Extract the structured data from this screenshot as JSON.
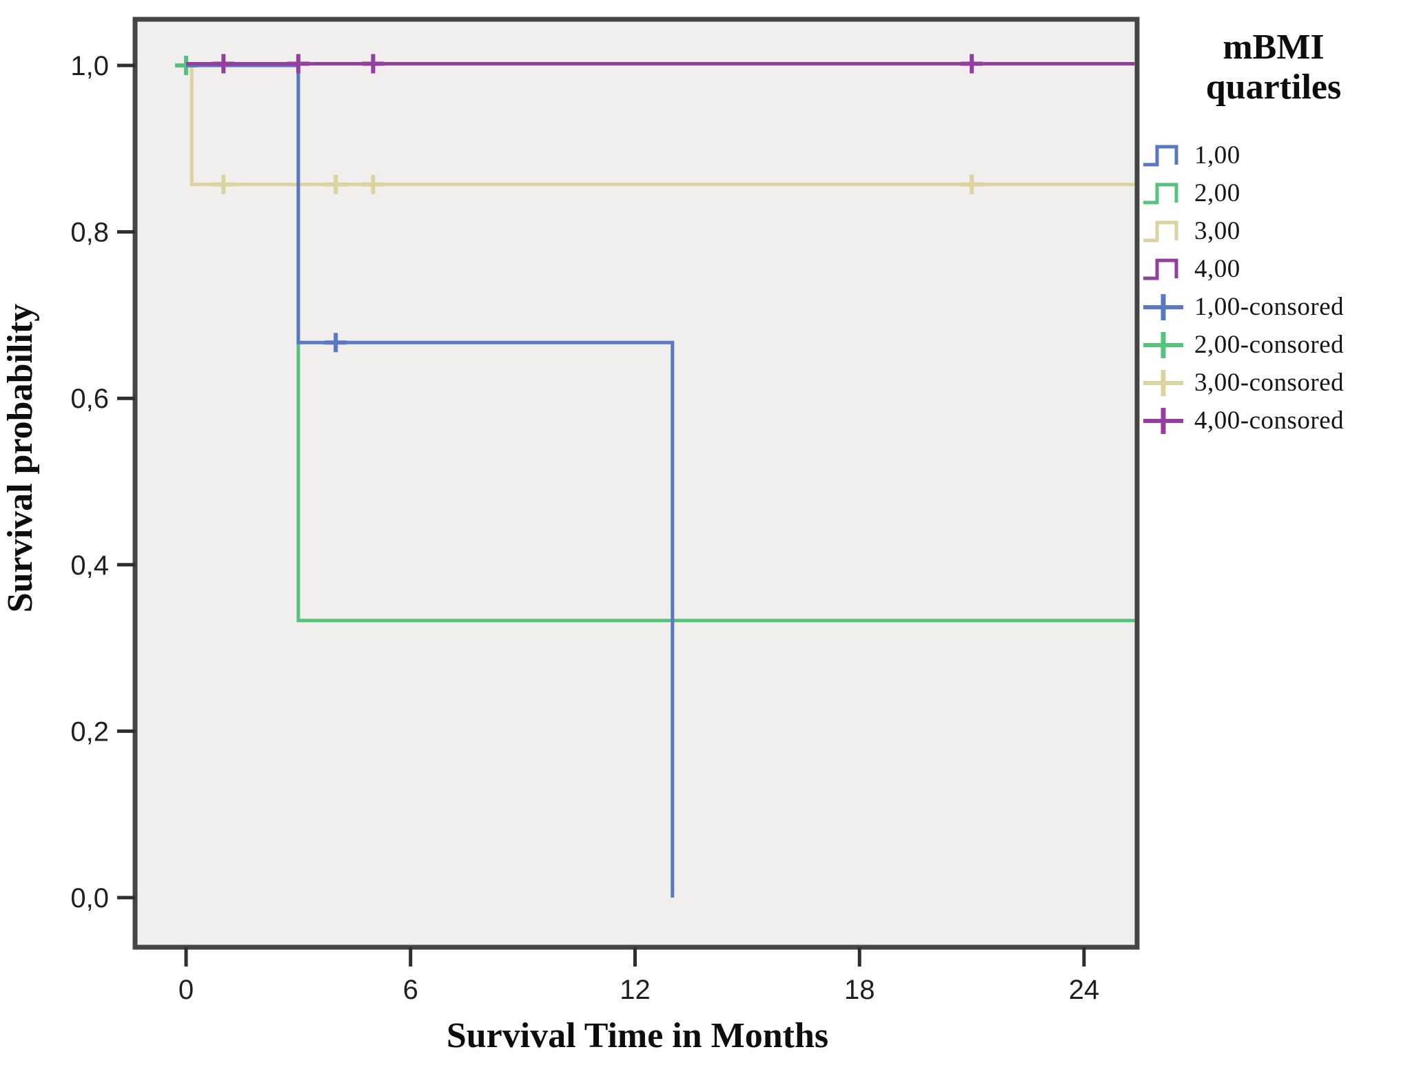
{
  "axes": {
    "x_title": "Survival Time in Months",
    "y_title": "Survival probability",
    "x_tick_labels": [
      "0",
      "6",
      "12",
      "18",
      "24"
    ],
    "y_tick_labels": [
      "0,0",
      "0,2",
      "0,4",
      "0,6",
      "0,8",
      "1,0"
    ]
  },
  "legend": {
    "title": "mBMI quartiles",
    "items": [
      {
        "label": "1,00",
        "glyph": "step",
        "color": "#5a78c2"
      },
      {
        "label": "2,00",
        "glyph": "step",
        "color": "#55c37d"
      },
      {
        "label": "3,00",
        "glyph": "step",
        "color": "#dbd3a0"
      },
      {
        "label": "4,00",
        "glyph": "step",
        "color": "#943f9f"
      },
      {
        "label": "1,00-consored",
        "glyph": "plus",
        "color": "#5a78c2"
      },
      {
        "label": "2,00-consored",
        "glyph": "plus",
        "color": "#55c37d"
      },
      {
        "label": "3,00-consored",
        "glyph": "plus",
        "color": "#dbd3a0"
      },
      {
        "label": "4,00-consored",
        "glyph": "plus",
        "color": "#943f9f"
      }
    ]
  },
  "chart_data": {
    "type": "line",
    "subtype": "kaplan_meier_step",
    "title": "",
    "xlabel": "Survival Time in Months",
    "ylabel": "Survival probability",
    "xlim": [
      -1.4,
      25.4
    ],
    "ylim": [
      -0.06,
      1.06
    ],
    "x_tick_values": [
      0,
      6,
      12,
      18,
      24
    ],
    "y_tick_values": [
      0.0,
      0.2,
      0.4,
      0.6,
      0.8,
      1.0
    ],
    "y_tick_labels": [
      "0,0",
      "0,2",
      "0,4",
      "0,6",
      "0,8",
      "1,0"
    ],
    "grid": false,
    "plot_bg": "#f0efee",
    "frame_color": "#454545",
    "legend_position": "right",
    "legend_title": "mBMI quartiles",
    "series": [
      {
        "name": "3,00",
        "color": "#dbd3a0",
        "steps": [
          [
            0,
            1.0
          ],
          [
            0.15,
            1.0
          ],
          [
            0.15,
            0.857
          ],
          [
            25.35,
            0.857
          ]
        ],
        "censored": [
          [
            1,
            0.857
          ],
          [
            4,
            0.857
          ],
          [
            5,
            0.857
          ],
          [
            21,
            0.857
          ]
        ]
      },
      {
        "name": "2,00",
        "color": "#55c37d",
        "steps": [
          [
            0,
            1.0
          ],
          [
            3,
            1.0
          ],
          [
            3,
            0.333
          ],
          [
            25.35,
            0.333
          ]
        ],
        "censored": [
          [
            0,
            1.0
          ]
        ]
      },
      {
        "name": "1,00",
        "color": "#5a78c2",
        "steps": [
          [
            0,
            1.0
          ],
          [
            3,
            1.0
          ],
          [
            3,
            0.667
          ],
          [
            13,
            0.667
          ],
          [
            13,
            0.0
          ]
        ],
        "censored": [
          [
            4,
            0.667
          ]
        ]
      },
      {
        "name": "4,00",
        "color": "#943f9f",
        "steps": [
          [
            0,
            1.0
          ],
          [
            25.35,
            1.0
          ]
        ],
        "censored": [
          [
            1,
            1.0
          ],
          [
            3,
            1.0
          ],
          [
            5,
            1.0
          ],
          [
            21,
            1.0
          ]
        ]
      }
    ]
  }
}
